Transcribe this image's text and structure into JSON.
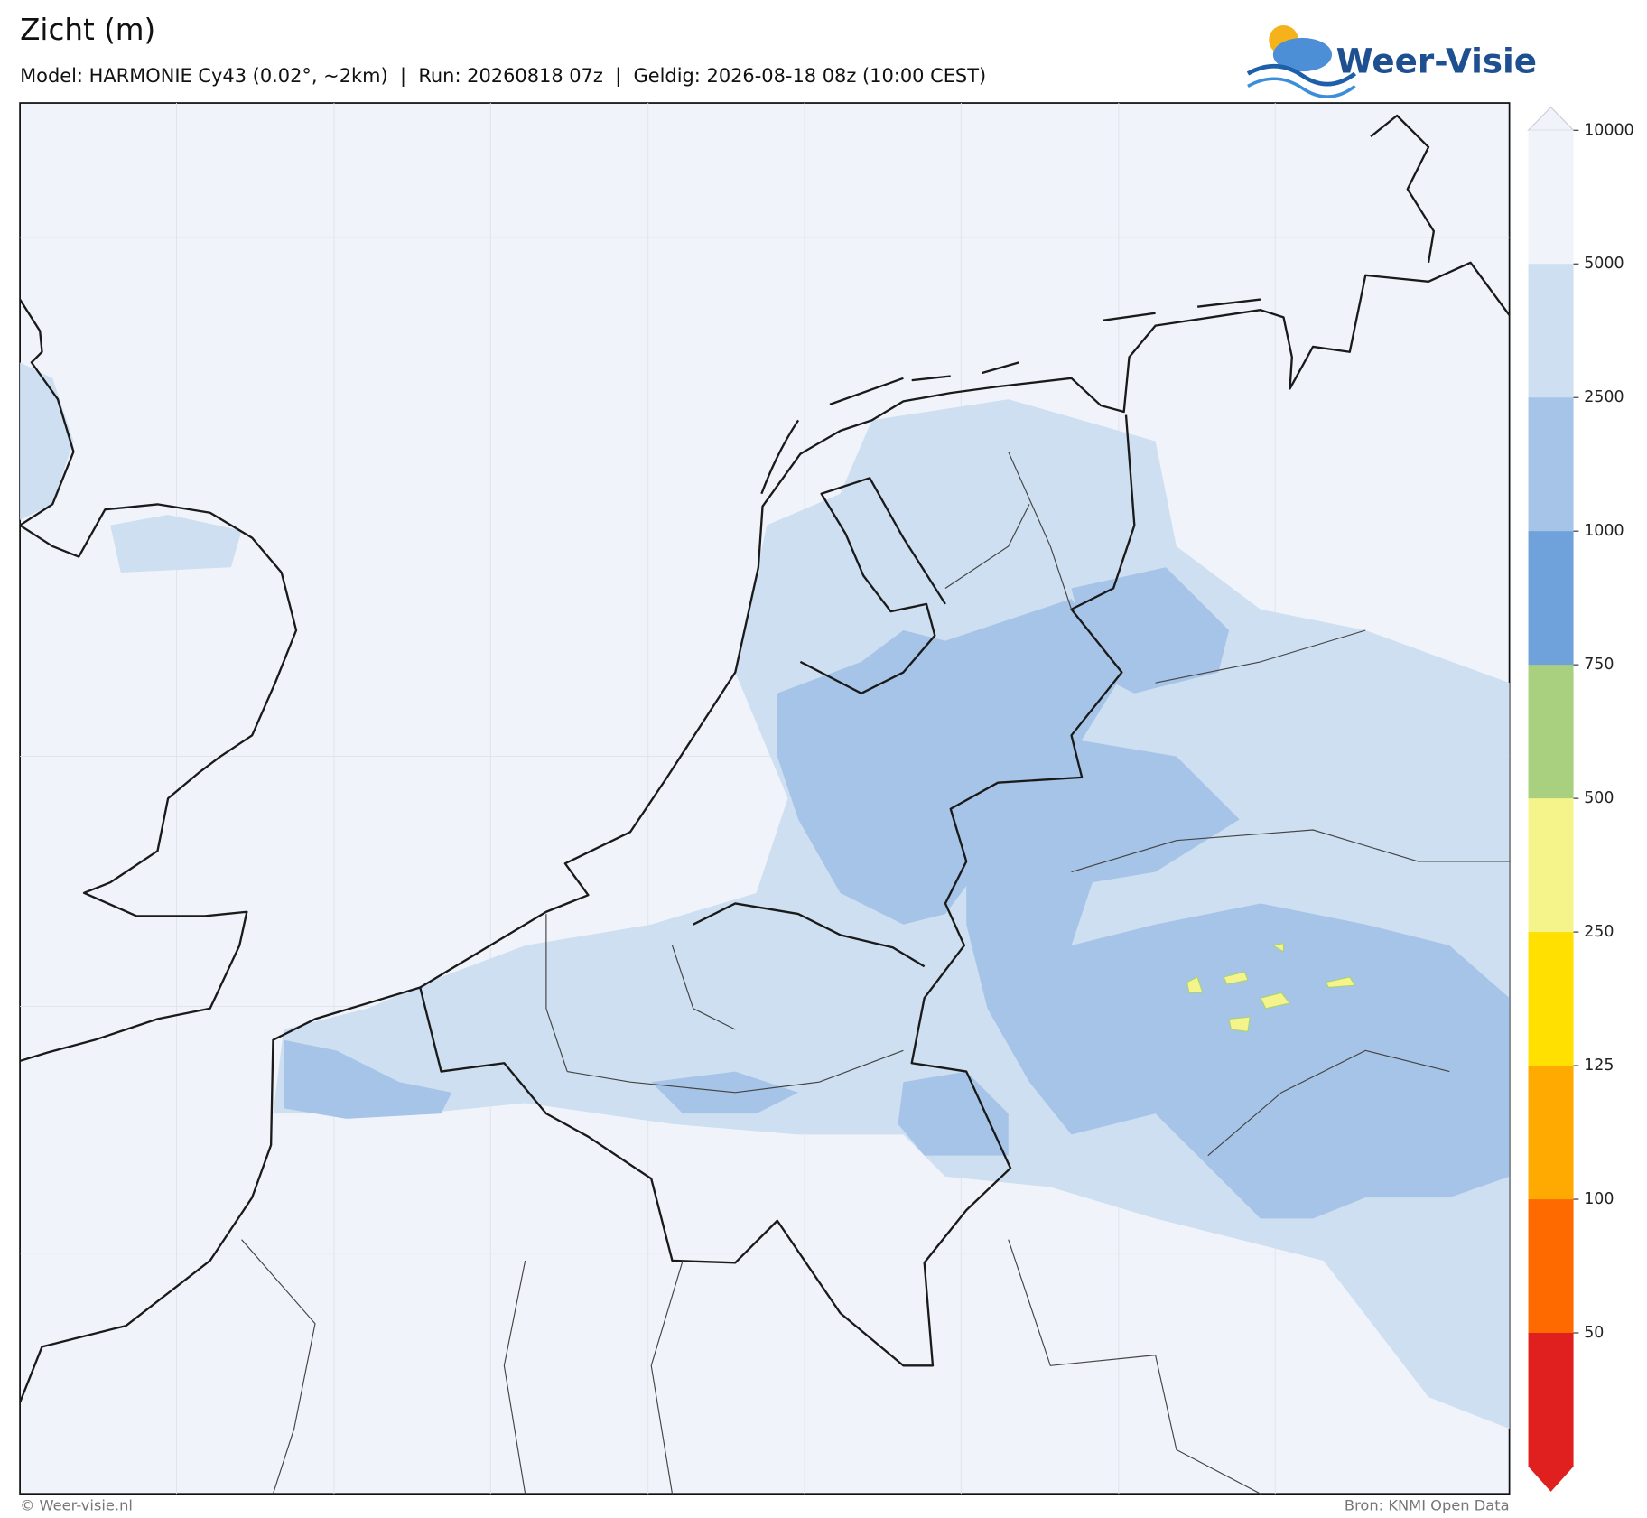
{
  "header": {
    "title": "Zicht (m)",
    "subtitle": "Model: HARMONIE Cy43 (0.02°, ~2km)  |  Run: 20260818 07z  |  Geldig: 2026-08-18 08z (10:00 CEST)",
    "logo": "Weer-Visie"
  },
  "colorbar": {
    "ticks": [
      10000,
      5000,
      2500,
      1000,
      750,
      500,
      250,
      125,
      100,
      50
    ],
    "colors": [
      "#f0f4fa",
      "#cddff0",
      "#a6c4e8",
      "#6fa2da",
      "#a8d07e",
      "#f5f48a",
      "#ffe000",
      "#ffaa00",
      "#ff6a00",
      "#e01f1f"
    ]
  },
  "footer": {
    "left": "© Weer-visie.nl",
    "right": "Bron: KNMI Open Data"
  }
}
